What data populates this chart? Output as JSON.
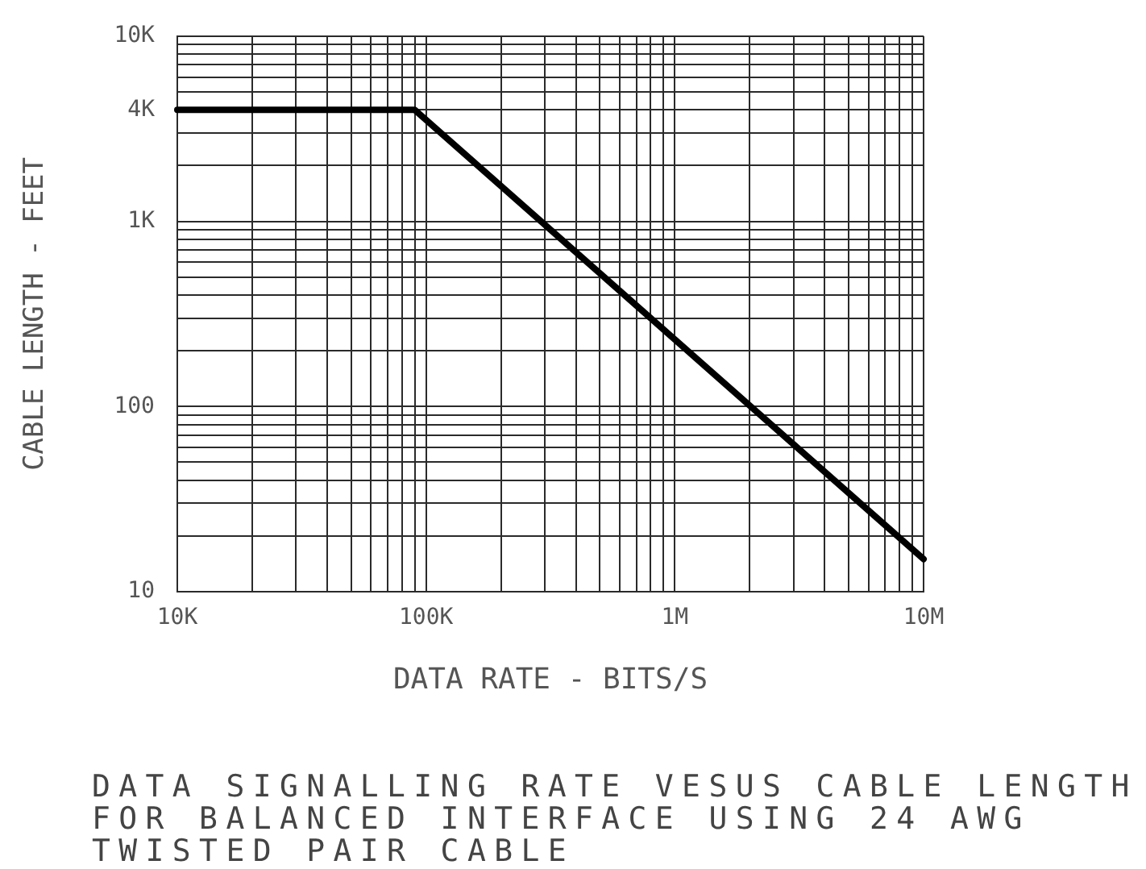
{
  "chart_data": {
    "type": "line",
    "xlabel": "DATA RATE - BITS/S",
    "ylabel": "CABLE LENGTH - FEET",
    "annotations": [
      "DATA SIGNALLING RATE VESUS CABLE LENGTH FOR BALANCED INTERFACE USING 24 AWG TWISTED PAIR CABLE"
    ],
    "x": [
      10000,
      90000,
      10000000
    ],
    "series": [
      {
        "color": "#000000",
        "values": [
          4000,
          4000,
          15
        ]
      }
    ],
    "log": "xy",
    "xlim": [
      10000,
      10000000
    ],
    "ylim": [
      10,
      10000
    ],
    "xticks": [
      {
        "value": 10000,
        "label": "10K"
      },
      {
        "value": 20000,
        "label": null
      },
      {
        "value": 30000,
        "label": null
      },
      {
        "value": 40000,
        "label": null
      },
      {
        "value": 50000,
        "label": null
      },
      {
        "value": 60000,
        "label": null
      },
      {
        "value": 70000,
        "label": null
      },
      {
        "value": 80000,
        "label": null
      },
      {
        "value": 90000,
        "label": null
      },
      {
        "value": 100000,
        "label": "100K"
      },
      {
        "value": 200000,
        "label": null
      },
      {
        "value": 300000,
        "label": null
      },
      {
        "value": 400000,
        "label": null
      },
      {
        "value": 500000,
        "label": null
      },
      {
        "value": 600000,
        "label": null
      },
      {
        "value": 700000,
        "label": null
      },
      {
        "value": 800000,
        "label": null
      },
      {
        "value": 900000,
        "label": null
      },
      {
        "value": 1000000,
        "label": "1M"
      },
      {
        "value": 2000000,
        "label": null
      },
      {
        "value": 3000000,
        "label": null
      },
      {
        "value": 4000000,
        "label": null
      },
      {
        "value": 5000000,
        "label": null
      },
      {
        "value": 6000000,
        "label": null
      },
      {
        "value": 7000000,
        "label": null
      },
      {
        "value": 8000000,
        "label": null
      },
      {
        "value": 9000000,
        "label": null
      },
      {
        "value": 10000000,
        "label": "10M"
      }
    ],
    "yticks": [
      10,
      {
        "value": 20,
        "label": null
      },
      {
        "value": 30,
        "label": null
      },
      {
        "value": 40,
        "label": null
      },
      {
        "value": 50,
        "label": null
      },
      {
        "value": 60,
        "label": null
      },
      {
        "value": 70,
        "label": null
      },
      {
        "value": 80,
        "label": null
      },
      {
        "value": 90,
        "label": null
      },
      100,
      {
        "value": 200,
        "label": null
      },
      {
        "value": 300,
        "label": null
      },
      {
        "value": 400,
        "label": null
      },
      {
        "value": 500,
        "label": null
      },
      {
        "value": 600,
        "label": null
      },
      {
        "value": 700,
        "label": null
      },
      {
        "value": 800,
        "label": null
      },
      {
        "value": 900,
        "label": null
      },
      {
        "value": 1000,
        "label": "1K"
      },
      {
        "value": 2000,
        "label": null
      },
      {
        "value": 3000,
        "label": null
      },
      {
        "value": 4000,
        "label": "4K"
      },
      {
        "value": 5000,
        "label": null
      },
      {
        "value": 6000,
        "label": null
      },
      {
        "value": 7000,
        "label": null
      },
      {
        "value": 8000,
        "label": null
      },
      {
        "value": 9000,
        "label": null
      },
      {
        "value": 10000,
        "label": "10K"
      }
    ],
    "grid": true,
    "legend": false,
    "marker": "none",
    "line_style": "solid"
  }
}
